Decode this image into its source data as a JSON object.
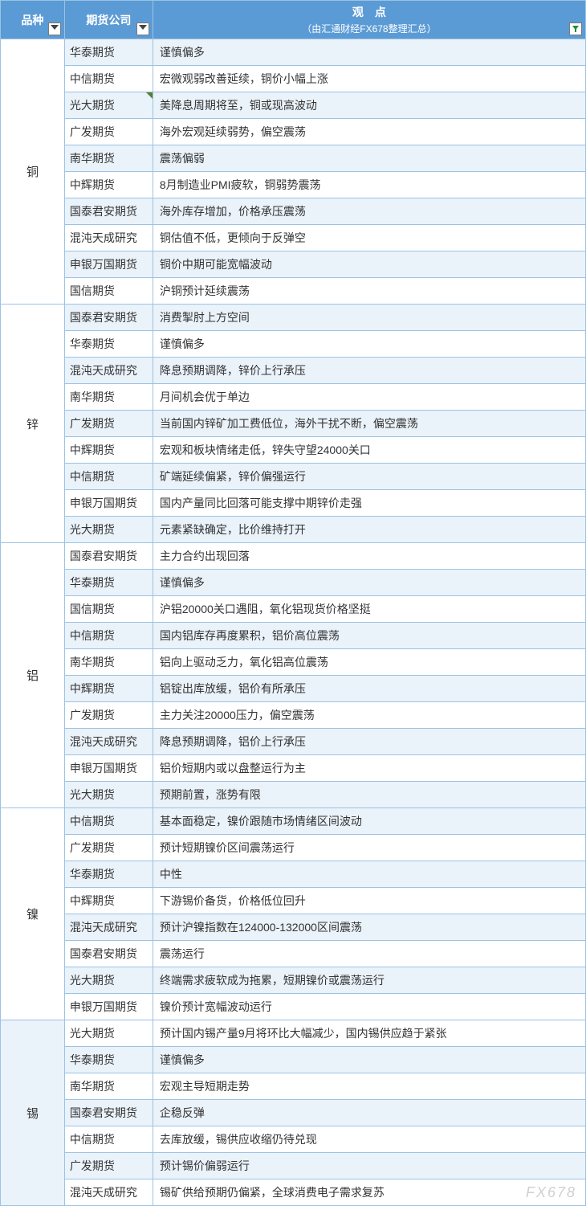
{
  "header": {
    "col_category": "品种",
    "col_firm": "期货公司",
    "col_view_title": "观　点",
    "col_view_sub": "（由汇通财经FX678整理汇总）"
  },
  "watermark": "FX678",
  "colors": {
    "header_bg": "#5b9bd5",
    "header_fg": "#ffffff",
    "border": "#9cc2e5",
    "row_alt_bg": "#eaf2fa",
    "row_bg": "#ffffff"
  },
  "categories": [
    {
      "name": "铜",
      "alt": false,
      "rows": [
        {
          "firm": "华泰期货",
          "view": "谨慎偏多",
          "alt": true
        },
        {
          "firm": "中信期货",
          "view": "宏微观弱改善延续，铜价小幅上涨",
          "alt": false
        },
        {
          "firm": "光大期货",
          "view": "美降息周期将至，铜或现高波动",
          "alt": true,
          "mark": true
        },
        {
          "firm": "广发期货",
          "view": "海外宏观延续弱势，偏空震荡",
          "alt": false
        },
        {
          "firm": "南华期货",
          "view": "震荡偏弱",
          "alt": true
        },
        {
          "firm": "中辉期货",
          "view": "8月制造业PMI疲软，铜弱势震荡",
          "alt": false
        },
        {
          "firm": "国泰君安期货",
          "view": "海外库存增加，价格承压震荡",
          "alt": true
        },
        {
          "firm": "混沌天成研究",
          "view": "铜估值不低，更倾向于反弹空",
          "alt": false
        },
        {
          "firm": "申银万国期货",
          "view": "铜价中期可能宽幅波动",
          "alt": true
        },
        {
          "firm": "国信期货",
          "view": "沪铜预计延续震荡",
          "alt": false
        }
      ]
    },
    {
      "name": "锌",
      "alt": false,
      "rows": [
        {
          "firm": "国泰君安期货",
          "view": "消费掣肘上方空间",
          "alt": true
        },
        {
          "firm": "华泰期货",
          "view": "谨慎偏多",
          "alt": false
        },
        {
          "firm": "混沌天成研究",
          "view": "降息预期调降，锌价上行承压",
          "alt": true
        },
        {
          "firm": "南华期货",
          "view": "月间机会优于单边",
          "alt": false
        },
        {
          "firm": "广发期货",
          "view": "当前国内锌矿加工费低位，海外干扰不断，偏空震荡",
          "alt": true
        },
        {
          "firm": "中辉期货",
          "view": "宏观和板块情绪走低，锌失守望24000关口",
          "alt": false
        },
        {
          "firm": "中信期货",
          "view": "矿端延续偏紧，锌价偏强运行",
          "alt": true
        },
        {
          "firm": "申银万国期货",
          "view": "国内产量同比回落可能支撑中期锌价走强",
          "alt": false
        },
        {
          "firm": "光大期货",
          "view": "元素紧缺确定，比价维持打开",
          "alt": true
        }
      ]
    },
    {
      "name": "铝",
      "alt": false,
      "rows": [
        {
          "firm": "国泰君安期货",
          "view": "主力合约出现回落",
          "alt": false
        },
        {
          "firm": "华泰期货",
          "view": "谨慎偏多",
          "alt": true
        },
        {
          "firm": "国信期货",
          "view": "沪铝20000关口遇阻，氧化铝现货价格坚挺",
          "alt": false
        },
        {
          "firm": "中信期货",
          "view": "国内铝库存再度累积，铝价高位震荡",
          "alt": true
        },
        {
          "firm": "南华期货",
          "view": "铝向上驱动乏力，氧化铝高位震荡",
          "alt": false
        },
        {
          "firm": "中辉期货",
          "view": "铝锭出库放缓，铝价有所承压",
          "alt": true
        },
        {
          "firm": "广发期货",
          "view": "主力关注20000压力，偏空震荡",
          "alt": false
        },
        {
          "firm": "混沌天成研究",
          "view": "降息预期调降，铝价上行承压",
          "alt": true
        },
        {
          "firm": "申银万国期货",
          "view": "铝价短期内或以盘整运行为主",
          "alt": false
        },
        {
          "firm": "光大期货",
          "view": "预期前置，涨势有限",
          "alt": true
        }
      ]
    },
    {
      "name": "镍",
      "alt": false,
      "rows": [
        {
          "firm": "中信期货",
          "view": "基本面稳定，镍价跟随市场情绪区间波动",
          "alt": true
        },
        {
          "firm": "广发期货",
          "view": "预计短期镍价区间震荡运行",
          "alt": false
        },
        {
          "firm": "华泰期货",
          "view": "中性",
          "alt": true
        },
        {
          "firm": "中辉期货",
          "view": "下游锡价备货，价格低位回升",
          "alt": false
        },
        {
          "firm": "混沌天成研究",
          "view": "预计沪镍指数在124000-132000区间震荡",
          "alt": true
        },
        {
          "firm": "国泰君安期货",
          "view": "震荡运行",
          "alt": false
        },
        {
          "firm": "光大期货",
          "view": "终端需求疲软成为拖累，短期镍价或震荡运行",
          "alt": true
        },
        {
          "firm": "申银万国期货",
          "view": "镍价预计宽幅波动运行",
          "alt": false
        }
      ]
    },
    {
      "name": "锡",
      "alt": true,
      "rows": [
        {
          "firm": "光大期货",
          "view": "预计国内锡产量9月将环比大幅减少，国内锡供应趋于紧张",
          "alt": false
        },
        {
          "firm": "华泰期货",
          "view": "谨慎偏多",
          "alt": true
        },
        {
          "firm": "南华期货",
          "view": "宏观主导短期走势",
          "alt": false
        },
        {
          "firm": "国泰君安期货",
          "view": "企稳反弹",
          "alt": true
        },
        {
          "firm": "中信期货",
          "view": "去库放缓，锡供应收缩仍待兑现",
          "alt": false
        },
        {
          "firm": "广发期货",
          "view": "预计锡价偏弱运行",
          "alt": true
        },
        {
          "firm": "混沌天成研究",
          "view": "锡矿供给预期仍偏紧，全球消费电子需求复苏",
          "alt": false
        }
      ]
    }
  ]
}
